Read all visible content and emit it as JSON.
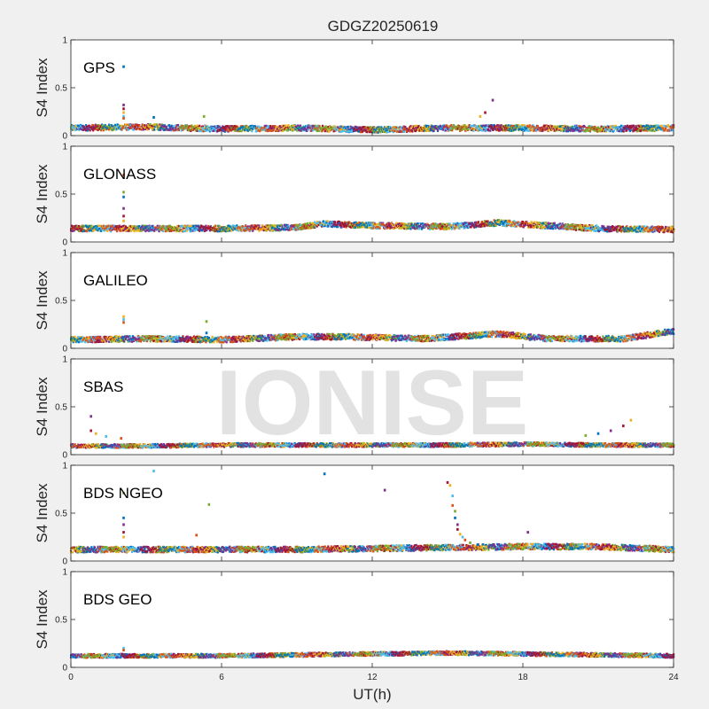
{
  "figure": {
    "title": "GDGZ20250619",
    "watermark": "IONISE",
    "xlabel": "UT(h)",
    "ylabel": "S4 Index",
    "xlim": [
      0,
      24
    ],
    "xticks": [
      0,
      6,
      12,
      18,
      24
    ],
    "ylim": [
      0,
      1
    ],
    "yticks": [
      0,
      0.5,
      1
    ],
    "colors": [
      "#0072BD",
      "#D95319",
      "#EDB120",
      "#7E2F8E",
      "#77AC30",
      "#4DBEEE",
      "#A2142F"
    ]
  },
  "chart_data": [
    {
      "type": "scatter",
      "label": "GPS",
      "xlim": [
        0,
        24
      ],
      "ylim": [
        0,
        1
      ],
      "baseline": [
        [
          0,
          0.08
        ],
        [
          3,
          0.09
        ],
        [
          6,
          0.07
        ],
        [
          9,
          0.08
        ],
        [
          12,
          0.06
        ],
        [
          15,
          0.08
        ],
        [
          18,
          0.08
        ],
        [
          21,
          0.07
        ],
        [
          24,
          0.08
        ]
      ],
      "spread": 0.03,
      "spikes": [
        [
          2.1,
          0.72
        ],
        [
          2.1,
          0.32
        ],
        [
          2.1,
          0.28
        ],
        [
          2.1,
          0.24
        ],
        [
          2.1,
          0.2
        ],
        [
          2.1,
          0.18
        ],
        [
          5.3,
          0.2
        ],
        [
          3.3,
          0.19
        ],
        [
          16.8,
          0.37
        ],
        [
          16.5,
          0.24
        ],
        [
          16.3,
          0.2
        ]
      ]
    },
    {
      "type": "scatter",
      "label": "GLONASS",
      "xlim": [
        0,
        24
      ],
      "ylim": [
        0,
        1
      ],
      "baseline": [
        [
          0,
          0.14
        ],
        [
          3,
          0.14
        ],
        [
          6,
          0.14
        ],
        [
          9,
          0.15
        ],
        [
          10,
          0.19
        ],
        [
          12,
          0.17
        ],
        [
          15,
          0.16
        ],
        [
          17,
          0.2
        ],
        [
          19,
          0.17
        ],
        [
          21,
          0.14
        ],
        [
          24,
          0.13
        ]
      ],
      "spread": 0.03,
      "spikes": [
        [
          2.1,
          0.7
        ],
        [
          2.1,
          0.52
        ],
        [
          2.1,
          0.47
        ],
        [
          2.1,
          0.35
        ],
        [
          2.1,
          0.27
        ],
        [
          2.1,
          0.22
        ]
      ]
    },
    {
      "type": "scatter",
      "label": "GALILEO",
      "xlim": [
        0,
        24
      ],
      "ylim": [
        0,
        1
      ],
      "baseline": [
        [
          0,
          0.09
        ],
        [
          3,
          0.1
        ],
        [
          6,
          0.09
        ],
        [
          9,
          0.12
        ],
        [
          11,
          0.12
        ],
        [
          14,
          0.1
        ],
        [
          17,
          0.15
        ],
        [
          19,
          0.1
        ],
        [
          22,
          0.1
        ],
        [
          24,
          0.18
        ]
      ],
      "spread": 0.03,
      "spikes": [
        [
          2.1,
          0.33
        ],
        [
          2.1,
          0.3
        ],
        [
          2.1,
          0.27
        ],
        [
          5.4,
          0.28
        ],
        [
          5.4,
          0.16
        ]
      ]
    },
    {
      "type": "scatter",
      "label": "SBAS",
      "xlim": [
        0,
        24
      ],
      "ylim": [
        0,
        1
      ],
      "baseline": [
        [
          0,
          0.09
        ],
        [
          3,
          0.09
        ],
        [
          6,
          0.1
        ],
        [
          9,
          0.1
        ],
        [
          12,
          0.1
        ],
        [
          15,
          0.1
        ],
        [
          18,
          0.11
        ],
        [
          21,
          0.1
        ],
        [
          24,
          0.1
        ]
      ],
      "spread": 0.02,
      "spikes": [
        [
          0.8,
          0.4
        ],
        [
          0.8,
          0.25
        ],
        [
          1.0,
          0.22
        ],
        [
          1.4,
          0.19
        ],
        [
          2.0,
          0.17
        ],
        [
          20.5,
          0.2
        ],
        [
          21,
          0.22
        ],
        [
          21.5,
          0.25
        ],
        [
          22,
          0.3
        ],
        [
          22.3,
          0.36
        ]
      ]
    },
    {
      "type": "scatter",
      "label": "BDS NGEO",
      "xlim": [
        0,
        24
      ],
      "ylim": [
        0,
        1
      ],
      "baseline": [
        [
          0,
          0.12
        ],
        [
          3,
          0.12
        ],
        [
          6,
          0.12
        ],
        [
          9,
          0.12
        ],
        [
          12,
          0.13
        ],
        [
          15,
          0.14
        ],
        [
          18,
          0.15
        ],
        [
          21,
          0.15
        ],
        [
          24,
          0.12
        ]
      ],
      "spread": 0.03,
      "spikes": [
        [
          2.1,
          0.71
        ],
        [
          2.1,
          0.45
        ],
        [
          2.1,
          0.38
        ],
        [
          2.1,
          0.3
        ],
        [
          2.1,
          0.25
        ],
        [
          3.3,
          0.94
        ],
        [
          5.0,
          0.27
        ],
        [
          5.5,
          0.59
        ],
        [
          10.1,
          0.91
        ],
        [
          12.5,
          0.74
        ],
        [
          15.0,
          0.82
        ],
        [
          15.1,
          0.79
        ],
        [
          15.2,
          0.68
        ],
        [
          15.2,
          0.58
        ],
        [
          15.3,
          0.52
        ],
        [
          15.3,
          0.45
        ],
        [
          15.4,
          0.38
        ],
        [
          15.4,
          0.33
        ],
        [
          15.5,
          0.28
        ],
        [
          15.6,
          0.25
        ],
        [
          15.7,
          0.22
        ],
        [
          15.9,
          0.19
        ],
        [
          16.2,
          0.17
        ],
        [
          18.2,
          0.3
        ]
      ]
    },
    {
      "type": "scatter",
      "label": "BDS GEO",
      "xlim": [
        0,
        24
      ],
      "ylim": [
        0,
        1
      ],
      "baseline": [
        [
          0,
          0.12
        ],
        [
          3,
          0.12
        ],
        [
          6,
          0.12
        ],
        [
          9,
          0.13
        ],
        [
          12,
          0.14
        ],
        [
          15,
          0.15
        ],
        [
          18,
          0.14
        ],
        [
          21,
          0.13
        ],
        [
          24,
          0.12
        ]
      ],
      "spread": 0.02,
      "spikes": [
        [
          2.1,
          0.2
        ],
        [
          2.1,
          0.18
        ]
      ]
    }
  ]
}
